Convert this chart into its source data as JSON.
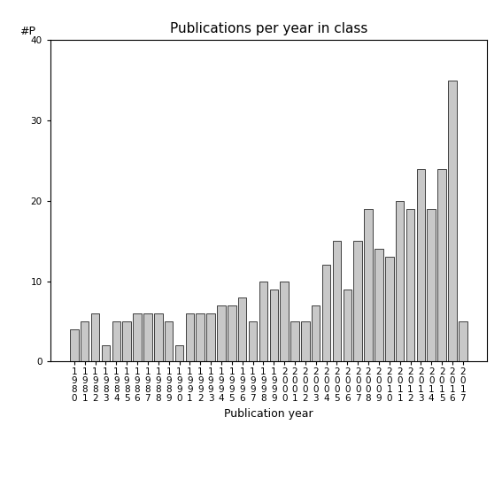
{
  "years": [
    "1980",
    "1981",
    "1982",
    "1983",
    "1984",
    "1985",
    "1986",
    "1987",
    "1988",
    "1989",
    "1990",
    "1991",
    "1992",
    "1993",
    "1994",
    "1995",
    "1996",
    "1997",
    "1998",
    "1999",
    "2000",
    "2001",
    "2002",
    "2003",
    "2004",
    "2005",
    "2006",
    "2007",
    "2008",
    "2009",
    "2010",
    "2011",
    "2012",
    "2013",
    "2014",
    "2015",
    "2016",
    "2017"
  ],
  "values": [
    4,
    5,
    6,
    2,
    5,
    5,
    6,
    6,
    6,
    5,
    2,
    6,
    6,
    6,
    7,
    7,
    8,
    5,
    10,
    9,
    10,
    5,
    5,
    7,
    12,
    15,
    9,
    15,
    19,
    14,
    13,
    20,
    19,
    24,
    19,
    24,
    35,
    5
  ],
  "title": "Publications per year in class",
  "xlabel": "Publication year",
  "ylabel": "#P",
  "ylim": [
    0,
    40
  ],
  "yticks": [
    0,
    10,
    20,
    30,
    40
  ],
  "bar_color": "#c8c8c8",
  "bar_edge_color": "#000000",
  "background_color": "#ffffff",
  "title_fontsize": 11,
  "axis_fontsize": 9,
  "tick_fontsize": 7.5
}
